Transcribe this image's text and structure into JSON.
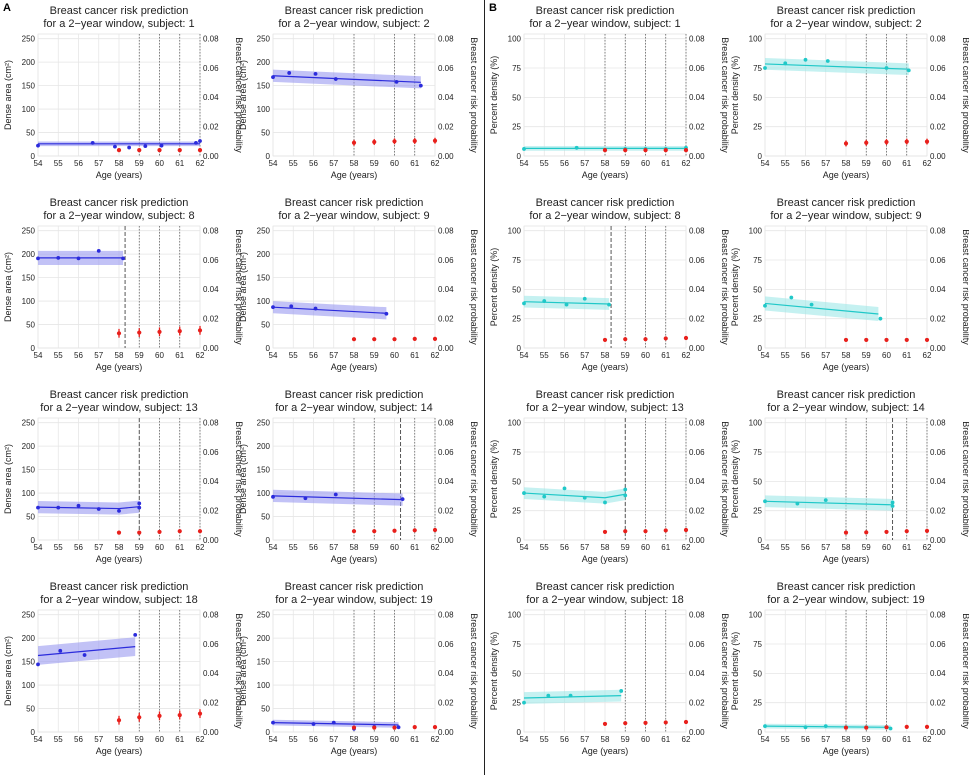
{
  "panel_labels": {
    "a": "A",
    "b": "B"
  },
  "colors": {
    "dense": "#2b2bdc",
    "dense_band": "#9a9af0",
    "percent": "#20c8c8",
    "percent_band": "#9ee8e8",
    "risk": "#e8201c",
    "grid": "#e6e6e6"
  },
  "common": {
    "title_line1": "Breast cancer risk prediction",
    "title_line2_prefix": "for a 2−year window, subject: ",
    "xlabel": "Age (years)",
    "ylabel_dense": "Dense area (cm²)",
    "ylabel_percent": "Percent density (%)",
    "ylabel_right": "Breast cancer risk probability",
    "x_ticks": [
      "54",
      "55",
      "56",
      "57",
      "58",
      "59",
      "60",
      "61",
      "62"
    ],
    "y_ticks_dense": [
      "0",
      "50",
      "100",
      "150",
      "200",
      "250"
    ],
    "y_ticks_percent": [
      "0",
      "25",
      "50",
      "75",
      "100"
    ],
    "y_ticks_right": [
      "0.00",
      "0.02",
      "0.04",
      "0.06",
      "0.08"
    ]
  },
  "chart_data": [
    {
      "type": "scatter",
      "panel": "A",
      "subject": "1",
      "xlim": [
        54,
        62
      ],
      "ylim": [
        0,
        260
      ],
      "ylim_right": [
        0,
        0.083
      ],
      "points": [
        [
          54,
          22
        ],
        [
          56.7,
          28
        ],
        [
          57.8,
          20
        ],
        [
          58.5,
          18
        ],
        [
          59.3,
          21
        ],
        [
          60.1,
          22
        ],
        [
          61.8,
          28
        ],
        [
          62,
          32
        ]
      ],
      "fit": [
        [
          54,
          26
        ],
        [
          62,
          26
        ]
      ],
      "band": 5,
      "risk_x": [
        58,
        59,
        60,
        61,
        62
      ],
      "risk": [
        0.004,
        0.004,
        0.004,
        0.004,
        0.004
      ],
      "risk_err": 0.0008,
      "vlines": [
        59,
        60,
        61,
        62
      ],
      "dashed": null
    },
    {
      "type": "scatter",
      "panel": "A",
      "subject": "2",
      "xlim": [
        54,
        62
      ],
      "ylim": [
        0,
        260
      ],
      "ylim_right": [
        0,
        0.083
      ],
      "points": [
        [
          54,
          168
        ],
        [
          54.8,
          177
        ],
        [
          56.1,
          175
        ],
        [
          57.1,
          164
        ],
        [
          60.1,
          158
        ],
        [
          61.3,
          150
        ]
      ],
      "fit": [
        [
          54,
          171
        ],
        [
          61.3,
          157
        ]
      ],
      "band": 13,
      "risk_x": [
        58,
        59,
        60,
        61,
        62
      ],
      "risk": [
        0.009,
        0.0095,
        0.01,
        0.0102,
        0.0104
      ],
      "risk_err": 0.002,
      "vlines": [
        58,
        60,
        61
      ],
      "dashed": null
    },
    {
      "type": "scatter",
      "panel": "A",
      "subject": "8",
      "xlim": [
        54,
        62
      ],
      "ylim": [
        0,
        260
      ],
      "ylim_right": [
        0,
        0.083
      ],
      "points": [
        [
          54,
          191
        ],
        [
          55,
          192
        ],
        [
          56,
          191
        ],
        [
          57,
          207
        ],
        [
          58.2,
          191
        ]
      ],
      "fit": [
        [
          54,
          192
        ],
        [
          58.2,
          192
        ]
      ],
      "band": 15,
      "risk_x": [
        58,
        59,
        60,
        61,
        62
      ],
      "risk": [
        0.01,
        0.0105,
        0.011,
        0.0115,
        0.012
      ],
      "risk_err": 0.003,
      "vlines": [
        59,
        60,
        61
      ],
      "dashed": 58.3
    },
    {
      "type": "scatter",
      "panel": "A",
      "subject": "9",
      "xlim": [
        54,
        62
      ],
      "ylim": [
        0,
        260
      ],
      "ylim_right": [
        0,
        0.083
      ],
      "points": [
        [
          54,
          87
        ],
        [
          54.9,
          89
        ],
        [
          56.1,
          84
        ],
        [
          59.6,
          73
        ]
      ],
      "fit": [
        [
          54,
          87
        ],
        [
          59.6,
          74
        ]
      ],
      "band": 13,
      "risk_x": [
        58,
        59,
        60,
        61,
        62
      ],
      "risk": [
        0.006,
        0.006,
        0.006,
        0.0062,
        0.0062
      ],
      "risk_err": 0.0008,
      "vlines": [],
      "dashed": null
    },
    {
      "type": "scatter",
      "panel": "A",
      "subject": "13",
      "xlim": [
        54,
        62
      ],
      "ylim": [
        0,
        260
      ],
      "ylim_right": [
        0,
        0.083
      ],
      "points": [
        [
          54,
          69
        ],
        [
          55,
          69
        ],
        [
          56,
          73
        ],
        [
          57,
          66
        ],
        [
          58,
          62
        ],
        [
          59,
          69
        ],
        [
          59,
          78
        ]
      ],
      "fit": [
        [
          54,
          70
        ],
        [
          58,
          67
        ],
        [
          59,
          71
        ]
      ],
      "band": 13,
      "risk_x": [
        58,
        59,
        60,
        61,
        62
      ],
      "risk": [
        0.005,
        0.005,
        0.0055,
        0.006,
        0.006
      ],
      "risk_err": 0.0008,
      "vlines": [
        60,
        61,
        62
      ],
      "dashed": 59
    },
    {
      "type": "scatter",
      "panel": "A",
      "subject": "14",
      "xlim": [
        54,
        62
      ],
      "ylim": [
        0,
        260
      ],
      "ylim_right": [
        0,
        0.083
      ],
      "points": [
        [
          54,
          92
        ],
        [
          55.6,
          89
        ],
        [
          57.1,
          97
        ],
        [
          60.4,
          87
        ]
      ],
      "fit": [
        [
          54,
          94
        ],
        [
          60.4,
          86
        ]
      ],
      "band": 13,
      "risk_x": [
        58,
        59,
        60,
        61,
        62
      ],
      "risk": [
        0.006,
        0.006,
        0.0063,
        0.0066,
        0.0068
      ],
      "risk_err": 0.0008,
      "vlines": [
        58,
        59,
        61,
        62
      ],
      "dashed": 60.3
    },
    {
      "type": "scatter",
      "panel": "A",
      "subject": "18",
      "xlim": [
        54,
        62
      ],
      "ylim": [
        0,
        260
      ],
      "ylim_right": [
        0,
        0.083
      ],
      "points": [
        [
          54,
          144
        ],
        [
          55.1,
          173
        ],
        [
          56.3,
          164
        ],
        [
          58.8,
          207
        ]
      ],
      "fit": [
        [
          54,
          163
        ],
        [
          58.8,
          182
        ]
      ],
      "band": 20,
      "risk_x": [
        58,
        59,
        60,
        61,
        62
      ],
      "risk": [
        0.008,
        0.01,
        0.011,
        0.0115,
        0.0125
      ],
      "risk_err": 0.003,
      "vlines": [
        59,
        60,
        61
      ],
      "dashed": null
    },
    {
      "type": "scatter",
      "panel": "A",
      "subject": "19",
      "xlim": [
        54,
        62
      ],
      "ylim": [
        0,
        260
      ],
      "ylim_right": [
        0,
        0.083
      ],
      "points": [
        [
          54,
          20
        ],
        [
          56,
          17
        ],
        [
          57,
          20
        ],
        [
          58,
          7
        ],
        [
          59,
          11
        ],
        [
          60.2,
          10
        ]
      ],
      "fit": [
        [
          54,
          20
        ],
        [
          60.2,
          15
        ]
      ],
      "band": 6,
      "risk_x": [
        58,
        59,
        60,
        61,
        62
      ],
      "risk": [
        0.003,
        0.003,
        0.003,
        0.0033,
        0.0033
      ],
      "risk_err": 0.0008,
      "vlines": [
        58,
        59,
        60
      ],
      "dashed": null
    },
    {
      "type": "scatter",
      "panel": "B",
      "subject": "1",
      "xlim": [
        54,
        62
      ],
      "ylim": [
        0,
        104
      ],
      "ylim_right": [
        0,
        0.083
      ],
      "points": [
        [
          54,
          6
        ],
        [
          56.6,
          7
        ],
        [
          58,
          5
        ],
        [
          59,
          6
        ],
        [
          60,
          6
        ],
        [
          61,
          6
        ],
        [
          62,
          7
        ]
      ],
      "fit": [
        [
          54,
          6.5
        ],
        [
          62,
          6.5
        ]
      ],
      "band": 2,
      "risk_x": [
        58,
        59,
        60,
        61,
        62
      ],
      "risk": [
        0.004,
        0.004,
        0.004,
        0.004,
        0.004
      ],
      "risk_err": 0.0008,
      "vlines": [
        58,
        59,
        60,
        61,
        62
      ],
      "dashed": null
    },
    {
      "type": "scatter",
      "panel": "B",
      "subject": "2",
      "xlim": [
        54,
        62
      ],
      "ylim": [
        0,
        104
      ],
      "ylim_right": [
        0,
        0.083
      ],
      "points": [
        [
          54,
          75
        ],
        [
          55,
          79
        ],
        [
          56,
          82
        ],
        [
          57.1,
          81
        ],
        [
          60,
          75
        ],
        [
          61.1,
          73
        ]
      ],
      "fit": [
        [
          54,
          78.5
        ],
        [
          61.1,
          74
        ]
      ],
      "band": 5,
      "risk_x": [
        58,
        59,
        60,
        61,
        62
      ],
      "risk": [
        0.0085,
        0.009,
        0.0095,
        0.0098,
        0.0098
      ],
      "risk_err": 0.002,
      "vlines": [
        59,
        60,
        61
      ],
      "dashed": null
    },
    {
      "type": "scatter",
      "panel": "B",
      "subject": "8",
      "xlim": [
        54,
        62
      ],
      "ylim": [
        0,
        104
      ],
      "ylim_right": [
        0,
        0.083
      ],
      "points": [
        [
          54,
          38
        ],
        [
          55,
          40
        ],
        [
          56.1,
          37
        ],
        [
          57,
          42
        ],
        [
          58.2,
          37
        ]
      ],
      "fit": [
        [
          54,
          39.5
        ],
        [
          58.2,
          37.5
        ]
      ],
      "band": 5,
      "risk_x": [
        58,
        59,
        60,
        61,
        62
      ],
      "risk": [
        0.0055,
        0.006,
        0.006,
        0.0065,
        0.0068
      ],
      "risk_err": 0.0008,
      "vlines": [
        59,
        60,
        61
      ],
      "dashed": 58.3
    },
    {
      "type": "scatter",
      "panel": "B",
      "subject": "9",
      "xlim": [
        54,
        62
      ],
      "ylim": [
        0,
        104
      ],
      "ylim_right": [
        0,
        0.083
      ],
      "points": [
        [
          54,
          36
        ],
        [
          55.3,
          43
        ],
        [
          56.3,
          37
        ],
        [
          59.7,
          25
        ]
      ],
      "fit": [
        [
          54,
          38
        ],
        [
          59.6,
          29
        ]
      ],
      "band": 6,
      "risk_x": [
        58,
        59,
        60,
        61,
        62
      ],
      "risk": [
        0.0055,
        0.0055,
        0.0055,
        0.0055,
        0.0055
      ],
      "risk_err": 0.0006,
      "vlines": [],
      "dashed": null
    },
    {
      "type": "scatter",
      "panel": "B",
      "subject": "13",
      "xlim": [
        54,
        62
      ],
      "ylim": [
        0,
        104
      ],
      "ylim_right": [
        0,
        0.083
      ],
      "points": [
        [
          54,
          40
        ],
        [
          55,
          37
        ],
        [
          56,
          44
        ],
        [
          57,
          36
        ],
        [
          58,
          32
        ],
        [
          59,
          38
        ],
        [
          59,
          43
        ]
      ],
      "fit": [
        [
          54,
          40
        ],
        [
          58,
          36
        ],
        [
          59,
          39
        ]
      ],
      "band": 5,
      "risk_x": [
        58,
        59,
        60,
        61,
        62
      ],
      "risk": [
        0.0055,
        0.006,
        0.006,
        0.0065,
        0.0068
      ],
      "risk_err": 0.0008,
      "vlines": [
        60,
        61,
        62
      ],
      "dashed": 59
    },
    {
      "type": "scatter",
      "panel": "B",
      "subject": "14",
      "xlim": [
        54,
        62
      ],
      "ylim": [
        0,
        104
      ],
      "ylim_right": [
        0,
        0.083
      ],
      "points": [
        [
          54,
          33
        ],
        [
          55.6,
          31
        ],
        [
          57,
          34
        ],
        [
          60.3,
          29
        ],
        [
          60.3,
          32
        ]
      ],
      "fit": [
        [
          54,
          33
        ],
        [
          60.3,
          30
        ]
      ],
      "band": 5,
      "risk_x": [
        58,
        59,
        60,
        61,
        62
      ],
      "risk": [
        0.005,
        0.0052,
        0.0055,
        0.006,
        0.0062
      ],
      "risk_err": 0.0006,
      "vlines": [
        58,
        59,
        61,
        62
      ],
      "dashed": 60.3
    },
    {
      "type": "scatter",
      "panel": "B",
      "subject": "18",
      "xlim": [
        54,
        62
      ],
      "ylim": [
        0,
        104
      ],
      "ylim_right": [
        0,
        0.083
      ],
      "points": [
        [
          54,
          25
        ],
        [
          55.2,
          31
        ],
        [
          56.3,
          31
        ],
        [
          58.8,
          35
        ]
      ],
      "fit": [
        [
          54,
          29
        ],
        [
          58.8,
          31
        ]
      ],
      "band": 5,
      "risk_x": [
        58,
        59,
        60,
        61,
        62
      ],
      "risk": [
        0.0055,
        0.006,
        0.0062,
        0.0065,
        0.0068
      ],
      "risk_err": 0.0008,
      "vlines": [
        59,
        60,
        61
      ],
      "dashed": null
    },
    {
      "type": "scatter",
      "panel": "B",
      "subject": "19",
      "xlim": [
        54,
        62
      ],
      "ylim": [
        0,
        104
      ],
      "ylim_right": [
        0,
        0.083
      ],
      "points": [
        [
          54,
          5
        ],
        [
          56,
          4
        ],
        [
          57,
          5
        ],
        [
          58,
          4
        ],
        [
          59,
          4
        ],
        [
          60,
          4
        ],
        [
          60.2,
          3
        ]
      ],
      "fit": [
        [
          54,
          5
        ],
        [
          60.2,
          4
        ]
      ],
      "band": 2,
      "risk_x": [
        58,
        59,
        60,
        61,
        62
      ],
      "risk": [
        0.003,
        0.003,
        0.0032,
        0.0035,
        0.0035
      ],
      "risk_err": 0.0006,
      "vlines": [
        58,
        59,
        60
      ],
      "dashed": null
    }
  ]
}
